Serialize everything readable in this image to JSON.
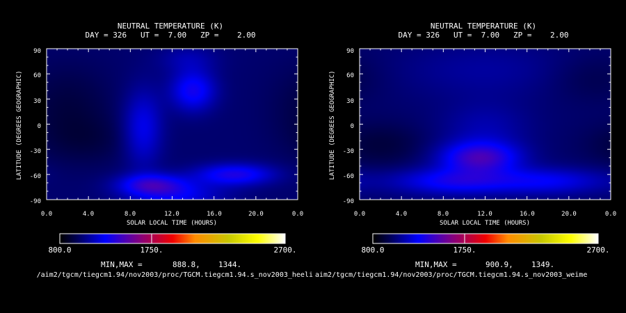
{
  "chart_data": [
    {
      "type": "heatmap",
      "title": "NEUTRAL TEMPERATURE (K)",
      "subtitle": "DAY = 326   UT =  7.00   ZP =    2.00",
      "xlabel": "SOLAR LOCAL TIME (HOURS)",
      "ylabel": "LATITUDE (DEGREES GEOGRAPHIC)",
      "x_ticks": [
        "0.0",
        "4.0",
        "8.0",
        "12.0",
        "16.0",
        "20.0",
        "0.0"
      ],
      "y_ticks": [
        "90",
        "60",
        "30",
        "0",
        "-30",
        "-60",
        "-90"
      ],
      "xlim": [
        0,
        24
      ],
      "ylim": [
        -90,
        90
      ],
      "colorbar": {
        "min_label": "800.0",
        "mid_label": "1750.",
        "max_label": "2700.",
        "range": [
          800,
          2700
        ]
      },
      "minmax_label": "MIN,MAX =",
      "min_value": "888.8,",
      "max_value": "1344.",
      "min": 888.8,
      "max": 1344,
      "base_value": 980,
      "features": [
        {
          "lt": 12.5,
          "lat": -85,
          "amp": 180,
          "sx": 3.2,
          "sy": 12
        },
        {
          "lt": 10.0,
          "lat": -72,
          "amp": 280,
          "sx": 2.2,
          "sy": 9
        },
        {
          "lt": 18.0,
          "lat": -60,
          "amp": 270,
          "sx": 2.6,
          "sy": 9
        },
        {
          "lt": 9.2,
          "lat": -5,
          "amp": 190,
          "sx": 1.3,
          "sy": 32
        },
        {
          "lt": 14.0,
          "lat": 40,
          "amp": 250,
          "sx": 1.5,
          "sy": 17
        },
        {
          "lt": 13.5,
          "lat": 78,
          "amp": 90,
          "sx": 2.0,
          "sy": 12
        },
        {
          "lt": 2.0,
          "lat": 20,
          "amp": -70,
          "sx": 3.0,
          "sy": 35
        },
        {
          "lt": 4.0,
          "lat": -20,
          "amp": -50,
          "sx": 3.0,
          "sy": 20
        }
      ],
      "source_path": "/aim2/tgcm/tiegcm1.94/nov2003/proc/TGCM.tiegcm1.94.s_nov2003_heeli"
    },
    {
      "type": "heatmap",
      "title": "NEUTRAL TEMPERATURE (K)",
      "subtitle": "DAY = 326   UT =  7.00   ZP =    2.00",
      "xlabel": "SOLAR LOCAL TIME (HOURS)",
      "ylabel": "LATITUDE (DEGREES GEOGRAPHIC)",
      "x_ticks": [
        "0.0",
        "4.0",
        "8.0",
        "12.0",
        "16.0",
        "20.0",
        "0.0"
      ],
      "y_ticks": [
        "90",
        "60",
        "30",
        "0",
        "-30",
        "-60",
        "-90"
      ],
      "xlim": [
        0,
        24
      ],
      "ylim": [
        -90,
        90
      ],
      "colorbar": {
        "min_label": "800.0",
        "mid_label": "1750.",
        "max_label": "2700.",
        "range": [
          800,
          2700
        ]
      },
      "minmax_label": "MIN,MAX =",
      "min_value": "900.9,",
      "max_value": "1349.",
      "min": 900.9,
      "max": 1349,
      "base_value": 1000,
      "features": [
        {
          "lt": 11.5,
          "lat": -40,
          "amp": 290,
          "sx": 2.6,
          "sy": 13
        },
        {
          "lt": 9.0,
          "lat": -68,
          "amp": 200,
          "sx": 4.0,
          "sy": 11
        },
        {
          "lt": 18.0,
          "lat": -68,
          "amp": 160,
          "sx": 4.0,
          "sy": 11
        },
        {
          "lt": 12.0,
          "lat": -5,
          "amp": 80,
          "sx": 3.0,
          "sy": 22
        },
        {
          "lt": 12.0,
          "lat": 65,
          "amp": 60,
          "sx": 6.0,
          "sy": 25
        },
        {
          "lt": 2.0,
          "lat": -25,
          "amp": -60,
          "sx": 3.0,
          "sy": 18
        },
        {
          "lt": 22.0,
          "lat": 55,
          "amp": -40,
          "sx": 3.0,
          "sy": 20
        }
      ],
      "source_path": "aim2/tgcm/tiegcm1.94/nov2003/proc/TGCM.tiegcm1.94.s_nov2003_weime"
    }
  ]
}
